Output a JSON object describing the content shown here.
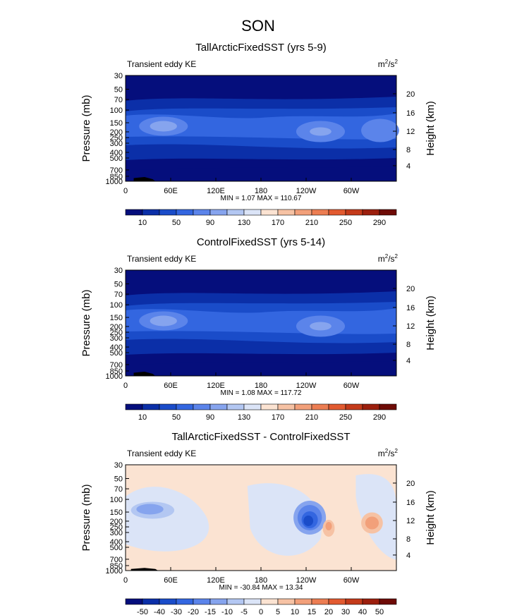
{
  "page_title": "SON",
  "chart_data": [
    {
      "type": "heatmap",
      "title": "TallArcticFixedSST (yrs 5-9)",
      "subtitle_left": "Transient eddy KE",
      "units": "m2/s2",
      "units_base": "m",
      "units_exp": "2",
      "units_mid": "/s",
      "units_exp2": "2",
      "ylabel_left": "Pressure (mb)",
      "ylabel_right": "Height (km)",
      "pressure_ticks": [
        "30",
        "50",
        "70",
        "100",
        "150",
        "200",
        "250",
        "300",
        "400",
        "500",
        "700",
        "850",
        "1000"
      ],
      "height_ticks": [
        "20",
        "16",
        "12",
        "8",
        "4"
      ],
      "x_ticks": [
        "0",
        "60E",
        "120E",
        "180",
        "120W",
        "60W"
      ],
      "min_max_text": "MIN =     1.07   MAX =  110.67",
      "min": 1.07,
      "max": 110.67,
      "colorbar_labels": [
        "10",
        "50",
        "90",
        "130",
        "170",
        "210",
        "250",
        "290"
      ],
      "colorbar_colors": [
        "#050e7c",
        "#0b2fa8",
        "#1a4cc9",
        "#3366e0",
        "#5b84ea",
        "#86a4ee",
        "#b3c7f2",
        "#dbe4f7",
        "#fbe3d2",
        "#f6c2a4",
        "#f2a07a",
        "#ec7d52",
        "#e25a30",
        "#c43a1a",
        "#9c1f0d",
        "#6e0b06"
      ]
    },
    {
      "type": "heatmap",
      "title": "ControlFixedSST (yrs 5-14)",
      "subtitle_left": "Transient eddy KE",
      "units": "m2/s2",
      "units_base": "m",
      "units_exp": "2",
      "units_mid": "/s",
      "units_exp2": "2",
      "ylabel_left": "Pressure (mb)",
      "ylabel_right": "Height (km)",
      "pressure_ticks": [
        "30",
        "50",
        "70",
        "100",
        "150",
        "200",
        "250",
        "300",
        "400",
        "500",
        "700",
        "850",
        "1000"
      ],
      "height_ticks": [
        "20",
        "16",
        "12",
        "8",
        "4"
      ],
      "x_ticks": [
        "0",
        "60E",
        "120E",
        "180",
        "120W",
        "60W"
      ],
      "min_max_text": "MIN =     1.08   MAX =  117.72",
      "min": 1.08,
      "max": 117.72,
      "colorbar_labels": [
        "10",
        "50",
        "90",
        "130",
        "170",
        "210",
        "250",
        "290"
      ],
      "colorbar_colors": [
        "#050e7c",
        "#0b2fa8",
        "#1a4cc9",
        "#3366e0",
        "#5b84ea",
        "#86a4ee",
        "#b3c7f2",
        "#dbe4f7",
        "#fbe3d2",
        "#f6c2a4",
        "#f2a07a",
        "#ec7d52",
        "#e25a30",
        "#c43a1a",
        "#9c1f0d",
        "#6e0b06"
      ]
    },
    {
      "type": "heatmap",
      "title": "TallArcticFixedSST - ControlFixedSST",
      "subtitle_left": "Transient eddy KE",
      "units": "m2/s2",
      "units_base": "m",
      "units_exp": "2",
      "units_mid": "/s",
      "units_exp2": "2",
      "ylabel_left": "Pressure (mb)",
      "ylabel_right": "Height (km)",
      "pressure_ticks": [
        "30",
        "50",
        "70",
        "100",
        "150",
        "200",
        "250",
        "300",
        "400",
        "500",
        "700",
        "850",
        "1000"
      ],
      "height_ticks": [
        "20",
        "16",
        "12",
        "8",
        "4"
      ],
      "x_ticks": [
        "0",
        "60E",
        "120E",
        "180",
        "120W",
        "60W"
      ],
      "min_max_text": "MIN =  -30.84   MAX =   13.34",
      "min": -30.84,
      "max": 13.34,
      "colorbar_labels": [
        "-50",
        "-40",
        "-30",
        "-20",
        "-15",
        "-10",
        "-5",
        "0",
        "5",
        "10",
        "15",
        "20",
        "30",
        "40",
        "50"
      ],
      "colorbar_colors": [
        "#050e7c",
        "#0b2fa8",
        "#1a4cc9",
        "#3366e0",
        "#5b84ea",
        "#86a4ee",
        "#b3c7f2",
        "#dbe4f7",
        "#fbe3d2",
        "#f6c2a4",
        "#f2a07a",
        "#ec7d52",
        "#e25a30",
        "#c43a1a",
        "#9c1f0d",
        "#6e0b06"
      ]
    }
  ]
}
